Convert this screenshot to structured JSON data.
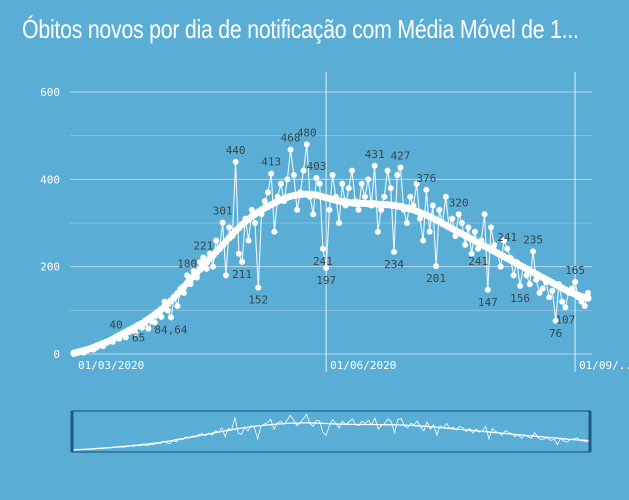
{
  "title": "Óbitos novos por dia de notificação com Média Móvel de 1...",
  "chart_data": {
    "type": "line",
    "title": "Óbitos novos por dia de notificação com Média Móvel de 1...",
    "ylim": [
      0,
      600
    ],
    "y_ticks": [
      0,
      200,
      400,
      600
    ],
    "x_ticks": [
      "01/03/2020",
      "01/06/2020",
      "01/09/..."
    ],
    "grid": true,
    "series": [
      {
        "values": [
          0,
          2,
          5,
          3,
          8,
          12,
          10,
          15,
          20,
          18,
          25,
          30,
          28,
          40,
          35,
          45,
          38,
          50,
          55,
          48,
          65,
          60,
          70,
          58,
          75,
          72,
          90,
          85,
          120,
          100,
          84,
          130,
          110,
          150,
          140,
          180,
          160,
          190,
          175,
          210,
          221,
          195,
          230,
          200,
          260,
          240,
          301,
          180,
          290,
          270,
          440,
          230,
          211,
          310,
          260,
          330,
          300,
          152,
          320,
          350,
          370,
          413,
          280,
          360,
          390,
          350,
          400,
          468,
          410,
          330,
          370,
          420,
          480,
          360,
          320,
          403,
          390,
          241,
          197,
          330,
          410,
          360,
          300,
          390,
          340,
          380,
          420,
          350,
          330,
          390,
          360,
          400,
          340,
          431,
          280,
          330,
          360,
          420,
          380,
          234,
          410,
          427,
          330,
          300,
          360,
          340,
          390,
          310,
          260,
          376,
          280,
          340,
          201,
          330,
          300,
          360,
          290,
          310,
          270,
          320,
          300,
          250,
          290,
          230,
          280,
          241,
          260,
          320,
          147,
          290,
          250,
          230,
          200,
          260,
          241,
          220,
          180,
          210,
          156,
          200,
          180,
          160,
          235,
          170,
          140,
          150,
          165,
          130,
          145,
          76,
          160,
          120,
          107,
          140,
          150,
          165,
          130,
          120,
          110,
          140
        ]
      },
      {
        "values": [
          2,
          4,
          6,
          8,
          10,
          12,
          15,
          18,
          21,
          24,
          27,
          30,
          34,
          38,
          42,
          46,
          50,
          54,
          58,
          62,
          66,
          70,
          75,
          80,
          85,
          90,
          96,
          102,
          108,
          115,
          122,
          130,
          138,
          146,
          154,
          162,
          170,
          178,
          186,
          194,
          202,
          210,
          218,
          226,
          234,
          242,
          250,
          258,
          266,
          274,
          282,
          289,
          296,
          303,
          309,
          315,
          320,
          325,
          330,
          334,
          338,
          342,
          346,
          350,
          353,
          356,
          359,
          361,
          363,
          364,
          365,
          366,
          366,
          366,
          365,
          364,
          362,
          360,
          358,
          356,
          354,
          352,
          350,
          349,
          348,
          347,
          346,
          345,
          345,
          345,
          345,
          344,
          344,
          344,
          343,
          343,
          342,
          342,
          341,
          340,
          339,
          338,
          336,
          334,
          332,
          330,
          327,
          324,
          321,
          318,
          315,
          311,
          307,
          303,
          299,
          295,
          291,
          287,
          283,
          279,
          275,
          271,
          267,
          263,
          259,
          255,
          251,
          247,
          243,
          239,
          235,
          231,
          227,
          223,
          219,
          215,
          211,
          207,
          203,
          199,
          195,
          191,
          187,
          183,
          179,
          175,
          171,
          167,
          163,
          159,
          155,
          151,
          147,
          143,
          140,
          137,
          134,
          132,
          130,
          128
        ]
      }
    ],
    "data_labels": [
      {
        "i": 13,
        "text": "40"
      },
      {
        "i": 20,
        "text": "65"
      },
      {
        "i": 30,
        "text": "84,64"
      },
      {
        "i": 35,
        "text": "180"
      },
      {
        "i": 40,
        "text": "221"
      },
      {
        "i": 46,
        "text": "301"
      },
      {
        "i": 50,
        "text": "440"
      },
      {
        "i": 52,
        "text": "211"
      },
      {
        "i": 57,
        "text": "152"
      },
      {
        "i": 61,
        "text": "413"
      },
      {
        "i": 67,
        "text": "468"
      },
      {
        "i": 72,
        "text": "480"
      },
      {
        "i": 75,
        "text": "403"
      },
      {
        "i": 77,
        "text": "241"
      },
      {
        "i": 78,
        "text": "197"
      },
      {
        "i": 93,
        "text": "431"
      },
      {
        "i": 99,
        "text": "234"
      },
      {
        "i": 101,
        "text": "427"
      },
      {
        "i": 109,
        "text": "376"
      },
      {
        "i": 112,
        "text": "201"
      },
      {
        "i": 119,
        "text": "320"
      },
      {
        "i": 125,
        "text": "241"
      },
      {
        "i": 128,
        "text": "147"
      },
      {
        "i": 134,
        "text": "241"
      },
      {
        "i": 138,
        "text": "156"
      },
      {
        "i": 142,
        "text": "235"
      },
      {
        "i": 149,
        "text": "76"
      },
      {
        "i": 152,
        "text": "107"
      },
      {
        "i": 155,
        "text": "165"
      }
    ]
  }
}
